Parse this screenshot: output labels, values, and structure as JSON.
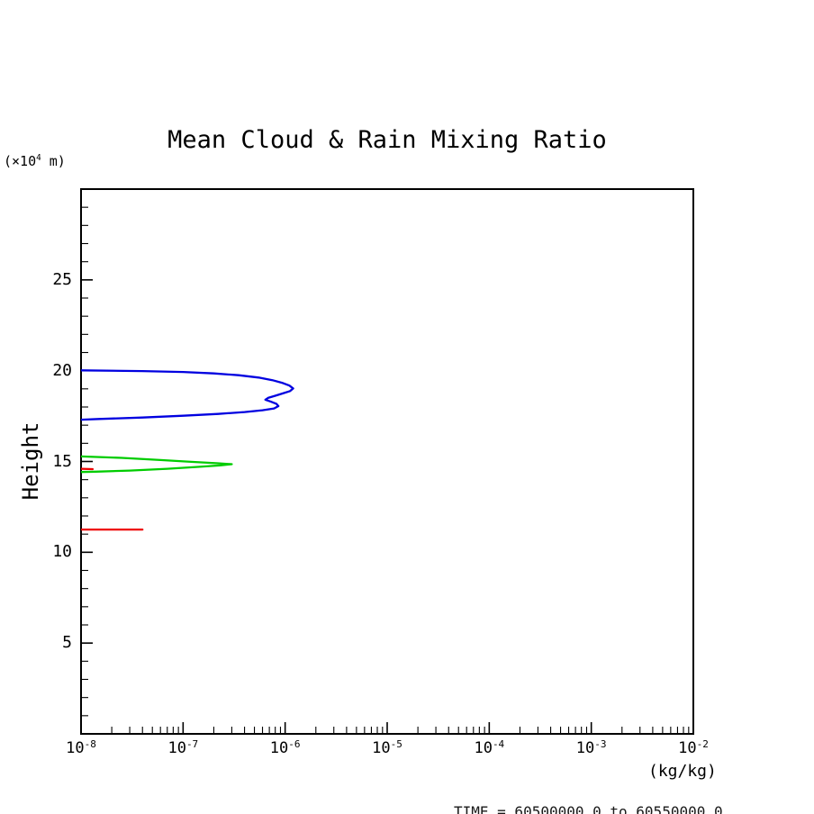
{
  "title": "Mean Cloud & Rain Mixing Ratio",
  "footer": {
    "text": "TIME = 60500000.0 to 60550000.0"
  },
  "y_axis": {
    "label": "Height",
    "unit_prefix": "(×10",
    "unit_exp": "4",
    "unit_suffix": " m)",
    "ticks": [
      5,
      10,
      15,
      20,
      25
    ],
    "min": 0,
    "max": 30
  },
  "x_axis": {
    "unit": "(kg/kg)",
    "tick_base": "10",
    "ticks_exp": [
      -8,
      -7,
      -6,
      -5,
      -4,
      -3,
      -2
    ],
    "min_exp": -8,
    "max_exp": -2
  },
  "chart_data": {
    "type": "line",
    "title": "Mean Cloud & Rain Mixing Ratio",
    "xlabel": "(kg/kg)",
    "ylabel": "Height (×10⁴ m)",
    "x_scale": "log",
    "xlim": [
      1e-08,
      0.01
    ],
    "ylim": [
      0,
      30
    ],
    "grid": false,
    "legend": "none",
    "frame_color": "#000000",
    "series": [
      {
        "name": "blue-profile",
        "color": "#0000e0",
        "points": [
          [
            1e-08,
            20.02
          ],
          [
            4e-08,
            19.98
          ],
          [
            1e-07,
            19.93
          ],
          [
            2e-07,
            19.85
          ],
          [
            3.5e-07,
            19.75
          ],
          [
            5.5e-07,
            19.62
          ],
          [
            7.5e-07,
            19.48
          ],
          [
            9.5e-07,
            19.32
          ],
          [
            1.1e-06,
            19.18
          ],
          [
            1.2e-06,
            19.02
          ],
          [
            1.12e-06,
            18.88
          ],
          [
            9.5e-07,
            18.75
          ],
          [
            8e-07,
            18.62
          ],
          [
            6.8e-07,
            18.5
          ],
          [
            6.4e-07,
            18.4
          ],
          [
            7.2e-07,
            18.3
          ],
          [
            8.2e-07,
            18.18
          ],
          [
            8.6e-07,
            18.05
          ],
          [
            7.8e-07,
            17.92
          ],
          [
            6e-07,
            17.82
          ],
          [
            4e-07,
            17.72
          ],
          [
            2.2e-07,
            17.62
          ],
          [
            1e-07,
            17.52
          ],
          [
            4e-08,
            17.42
          ],
          [
            1.5e-08,
            17.34
          ],
          [
            1e-08,
            17.3
          ]
        ]
      },
      {
        "name": "green-profile",
        "color": "#00cc00",
        "points": [
          [
            1e-08,
            15.28
          ],
          [
            2.5e-08,
            15.2
          ],
          [
            6e-08,
            15.08
          ],
          [
            1.2e-07,
            14.98
          ],
          [
            2.2e-07,
            14.9
          ],
          [
            3e-07,
            14.85
          ],
          [
            2.3e-07,
            14.78
          ],
          [
            1.4e-07,
            14.7
          ],
          [
            7e-08,
            14.6
          ],
          [
            3e-08,
            14.5
          ],
          [
            1.4e-08,
            14.44
          ],
          [
            1e-08,
            14.42
          ]
        ]
      },
      {
        "name": "red-profile",
        "color": "#ee0000",
        "points": [
          [
            1e-08,
            11.25
          ],
          [
            4e-08,
            11.25
          ]
        ]
      },
      {
        "name": "red-mark",
        "color": "#ee0000",
        "points": [
          [
            1e-08,
            14.6
          ],
          [
            1.3e-08,
            14.58
          ]
        ]
      }
    ]
  }
}
